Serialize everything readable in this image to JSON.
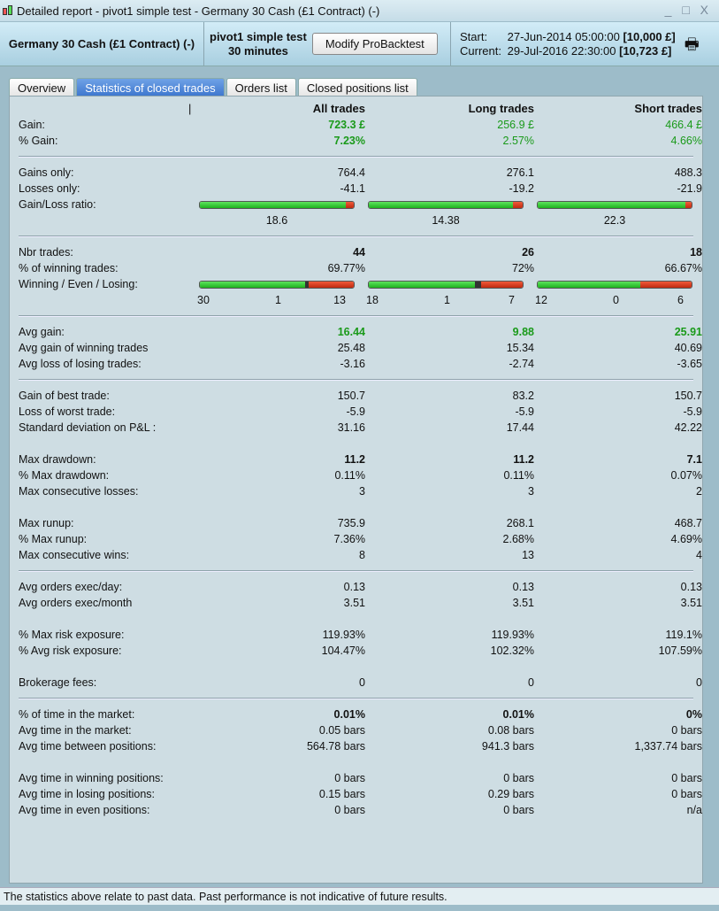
{
  "window": {
    "title": "Detailed report - pivot1 simple test - Germany 30 Cash (£1 Contract) (-)",
    "controls": "_ □ X"
  },
  "header": {
    "instrument": "Germany 30 Cash (£1 Contract) (-)",
    "system": "pivot1 simple test",
    "timeframe": "30 minutes",
    "modify_button": "Modify ProBacktest",
    "start_label": "Start:",
    "start_date": "27-Jun-2014 05:00:00",
    "start_capital": "[10,000 £]",
    "current_label": "Current:",
    "current_date": "29-Jul-2016 22:30:00",
    "current_capital": "[10,723 £]"
  },
  "tabs": [
    "Overview",
    "Statistics of closed trades",
    "Orders list",
    "Closed positions list"
  ],
  "columns": [
    "All trades",
    "Long trades",
    "Short trades"
  ],
  "rows": [
    {
      "t": "row",
      "label": "Gain:",
      "values": [
        "723.3 £",
        "256.9 £",
        "466.4 £"
      ],
      "style": "green",
      "boldfirst": true
    },
    {
      "t": "row",
      "label": "% Gain:",
      "values": [
        "7.23%",
        "2.57%",
        "4.66%"
      ],
      "style": "green",
      "boldfirst": true
    },
    {
      "t": "sep"
    },
    {
      "t": "row",
      "label": "Gains only:",
      "values": [
        "764.4",
        "276.1",
        "488.3"
      ]
    },
    {
      "t": "row",
      "label": "Losses only:",
      "values": [
        "-41.1",
        "-19.2",
        "-21.9"
      ]
    },
    {
      "t": "bar",
      "label": "Gain/Loss ratio:",
      "parts": [
        [
          0.949,
          0,
          0.051
        ],
        [
          0.935,
          0,
          0.065
        ],
        [
          0.957,
          0,
          0.043
        ]
      ]
    },
    {
      "t": "ratio",
      "values": [
        "18.6",
        "14.38",
        "22.3"
      ]
    },
    {
      "t": "sep"
    },
    {
      "t": "row",
      "label": "Nbr trades:",
      "values": [
        "44",
        "26",
        "18"
      ],
      "style": "bold"
    },
    {
      "t": "row",
      "label": "% of winning trades:",
      "values": [
        "69.77%",
        "72%",
        "66.67%"
      ]
    },
    {
      "t": "bar",
      "label": "Winning / Even / Losing:",
      "parts": [
        [
          30,
          1,
          13
        ],
        [
          18,
          1,
          7
        ],
        [
          12,
          0,
          6
        ]
      ]
    },
    {
      "t": "counts",
      "values": [
        [
          "30",
          "1",
          "13"
        ],
        [
          "18",
          "1",
          "7"
        ],
        [
          "12",
          "0",
          "6"
        ]
      ]
    },
    {
      "t": "sep"
    },
    {
      "t": "row",
      "label": "Avg gain:",
      "values": [
        "16.44",
        "9.88",
        "25.91"
      ],
      "style": "green bold"
    },
    {
      "t": "row",
      "label": "Avg gain of winning trades",
      "values": [
        "25.48",
        "15.34",
        "40.69"
      ]
    },
    {
      "t": "row",
      "label": "Avg loss of losing trades:",
      "values": [
        "-3.16",
        "-2.74",
        "-3.65"
      ]
    },
    {
      "t": "sep"
    },
    {
      "t": "row",
      "label": "Gain of best trade:",
      "values": [
        "150.7",
        "83.2",
        "150.7"
      ]
    },
    {
      "t": "row",
      "label": "Loss of worst trade:",
      "values": [
        "-5.9",
        "-5.9",
        "-5.9"
      ]
    },
    {
      "t": "row",
      "label": "Standard deviation on P&L :",
      "values": [
        "31.16",
        "17.44",
        "42.22"
      ]
    },
    {
      "t": "gap"
    },
    {
      "t": "row",
      "label": "Max drawdown:",
      "values": [
        "11.2",
        "11.2",
        "7.1"
      ],
      "style": "bold"
    },
    {
      "t": "row",
      "label": "% Max drawdown:",
      "values": [
        "0.11%",
        "0.11%",
        "0.07%"
      ]
    },
    {
      "t": "row",
      "label": "Max consecutive losses:",
      "values": [
        "3",
        "3",
        "2"
      ]
    },
    {
      "t": "gap"
    },
    {
      "t": "row",
      "label": "Max runup:",
      "values": [
        "735.9",
        "268.1",
        "468.7"
      ]
    },
    {
      "t": "row",
      "label": "% Max runup:",
      "values": [
        "7.36%",
        "2.68%",
        "4.69%"
      ]
    },
    {
      "t": "row",
      "label": "Max consecutive wins:",
      "values": [
        "8",
        "13",
        "4"
      ]
    },
    {
      "t": "sep"
    },
    {
      "t": "row",
      "label": "Avg orders exec/day:",
      "values": [
        "0.13",
        "0.13",
        "0.13"
      ]
    },
    {
      "t": "row",
      "label": "Avg orders exec/month",
      "values": [
        "3.51",
        "3.51",
        "3.51"
      ]
    },
    {
      "t": "gap"
    },
    {
      "t": "row",
      "label": "% Max risk exposure:",
      "values": [
        "119.93%",
        "119.93%",
        "119.1%"
      ]
    },
    {
      "t": "row",
      "label": "% Avg risk exposure:",
      "values": [
        "104.47%",
        "102.32%",
        "107.59%"
      ]
    },
    {
      "t": "gap"
    },
    {
      "t": "row",
      "label": "Brokerage fees:",
      "values": [
        "0",
        "0",
        "0"
      ]
    },
    {
      "t": "sep"
    },
    {
      "t": "row",
      "label": "% of time in the market:",
      "values": [
        "0.01%",
        "0.01%",
        "0%"
      ],
      "style": "bold"
    },
    {
      "t": "row",
      "label": "Avg time in the market:",
      "values": [
        "0.05 bars",
        "0.08 bars",
        "0 bars"
      ]
    },
    {
      "t": "row",
      "label": "Avg time between positions:",
      "values": [
        "564.78 bars",
        "941.3 bars",
        "1,337.74 bars"
      ]
    },
    {
      "t": "gap"
    },
    {
      "t": "row",
      "label": "Avg time in winning positions:",
      "values": [
        "0 bars",
        "0 bars",
        "0 bars"
      ]
    },
    {
      "t": "row",
      "label": "Avg time in losing positions:",
      "values": [
        "0.15 bars",
        "0.29 bars",
        "0 bars"
      ]
    },
    {
      "t": "row",
      "label": "Avg time in even positions:",
      "values": [
        "0 bars",
        "0 bars",
        "n/a"
      ]
    }
  ],
  "footer": "The statistics above relate to past data. Past performance is not indicative of future results."
}
